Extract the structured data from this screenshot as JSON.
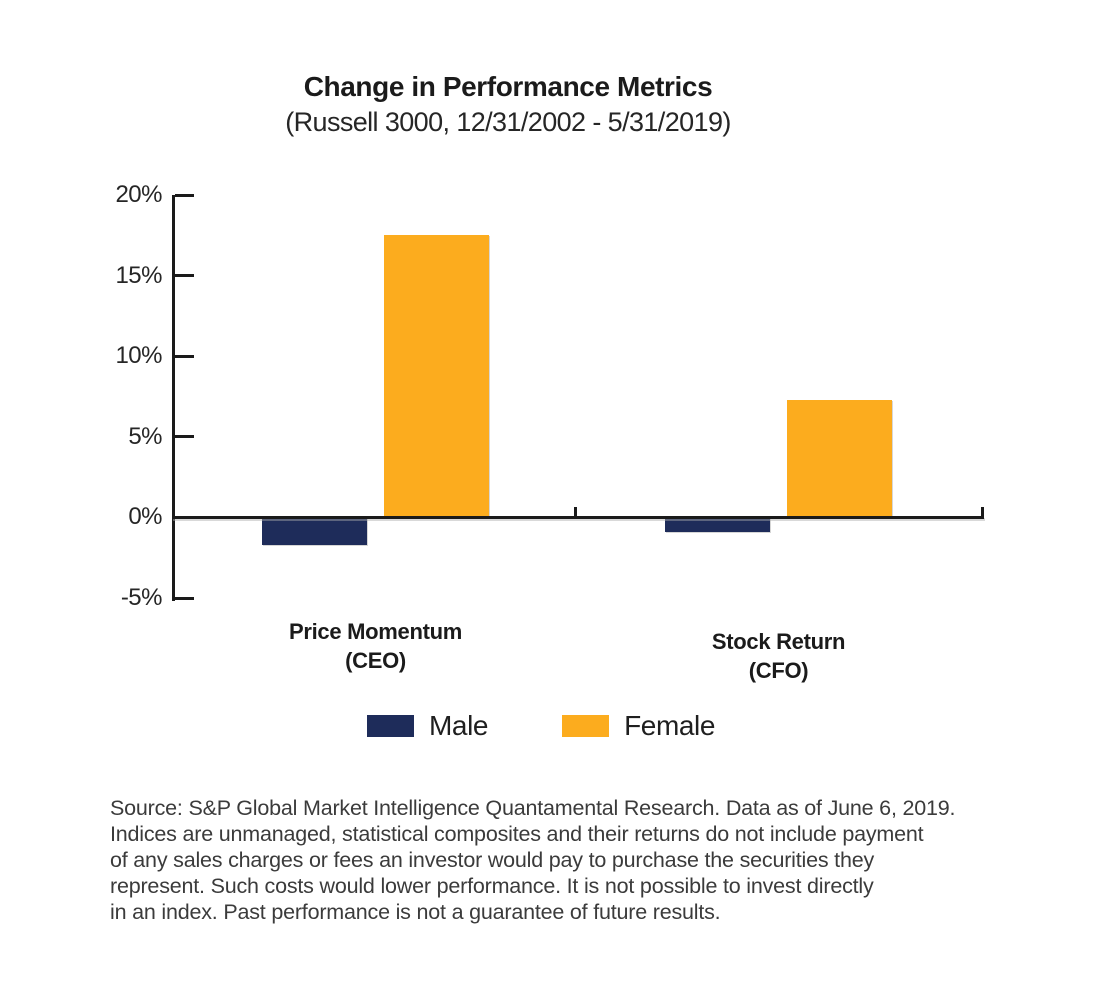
{
  "header": {
    "title": "Change in Performance Metrics",
    "subtitle": "(Russell 3000, 12/31/2002 - 5/31/2019)"
  },
  "chart_data": {
    "type": "bar",
    "title": "Change in Performance Metrics",
    "subtitle": "(Russell 3000, 12/31/2002 - 5/31/2019)",
    "categories": [
      "Price Momentum (CEO)",
      "Stock Return (CFO)"
    ],
    "category_lines": [
      [
        "Price Momentum",
        "(CEO)"
      ],
      [
        "Stock Return",
        "(CFO)"
      ]
    ],
    "series": [
      {
        "name": "Male",
        "color": "#1E2C5A",
        "values": [
          -1.7,
          -0.9
        ]
      },
      {
        "name": "Female",
        "color": "#FCAC1E",
        "values": [
          17.5,
          7.3
        ]
      }
    ],
    "unit": "%",
    "xlabel": "",
    "ylabel": "",
    "ylim": [
      -5,
      20
    ],
    "yticks": [
      20,
      15,
      10,
      5,
      0,
      -5
    ],
    "ytick_labels": [
      "20%",
      "15%",
      "10%",
      "5%",
      "0%",
      "-5%"
    ],
    "grid": false,
    "legend_position": "bottom-center"
  },
  "legend": {
    "items": [
      {
        "label": "Male",
        "color": "#1E2C5A"
      },
      {
        "label": "Female",
        "color": "#FCAC1E"
      }
    ]
  },
  "source": {
    "lines": [
      "Source: S&P Global Market Intelligence Quantamental Research. Data as of June 6, 2019.",
      "Indices are unmanaged, statistical composites and their returns do not include payment",
      "of any sales charges or fees an investor would pay to purchase the securities they",
      "represent. Such costs would lower performance. It is not possible to invest directly",
      "in an index. Past performance is not a guarantee of future results."
    ]
  },
  "colors": {
    "male": "#1E2C5A",
    "female": "#FCAC1E",
    "axis": "#1A1A1A",
    "title_text": "#1B1B1B",
    "body_text": "#3B3B3B"
  }
}
